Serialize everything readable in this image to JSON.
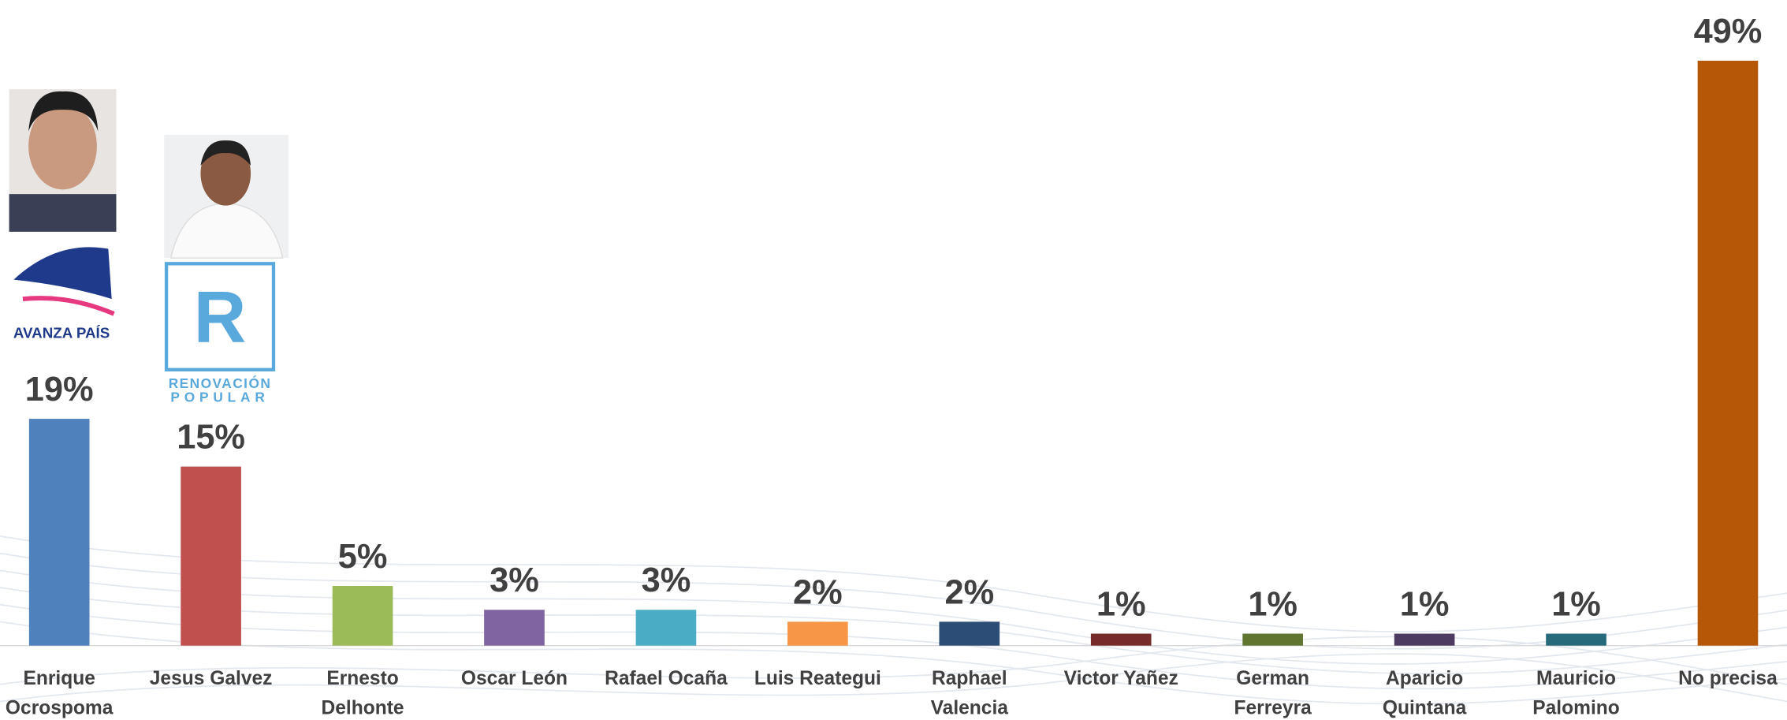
{
  "chart_data": {
    "type": "bar",
    "categories": [
      "Enrique Ocrospoma",
      "Jesus Galvez",
      "Ernesto Delhonte",
      "Oscar León",
      "Rafael Ocaña",
      "Luis Reategui",
      "Raphael Valencia",
      "Victor Yañez",
      "German Ferreyra",
      "Aparicio Quintana",
      "Mauricio Palomino",
      "No precisa"
    ],
    "values": [
      19,
      15,
      5,
      3,
      3,
      2,
      2,
      1,
      1,
      1,
      1,
      49
    ],
    "value_labels": [
      "19%",
      "15%",
      "5%",
      "3%",
      "3%",
      "2%",
      "2%",
      "1%",
      "1%",
      "1%",
      "1%",
      "49%"
    ],
    "colors": [
      "#4f81bd",
      "#c0504d",
      "#9bbb59",
      "#8064a2",
      "#4bacc6",
      "#f79646",
      "#2c4d75",
      "#772c2a",
      "#5f7530",
      "#4d3b62",
      "#276a7c",
      "#b65708"
    ],
    "annotations": [
      "AVANZA PAÍS",
      "R",
      "RENOVACIÓN",
      "POPULAR"
    ]
  }
}
